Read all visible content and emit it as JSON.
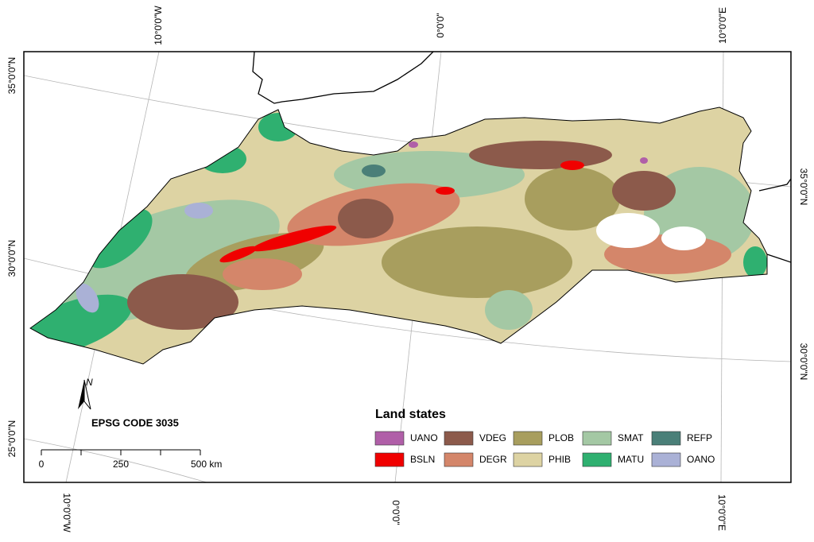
{
  "graticule": {
    "top": [
      "10°0'0\"W",
      "0°0'0\"",
      "10°0'0\"E"
    ],
    "bottom": [
      "10°0'0\"W",
      "0°0'0\"",
      "10°0'0\"E"
    ],
    "left": [
      "35°0'0\"N",
      "30°0'0\"N",
      "25°0'0\"N"
    ],
    "right": [
      "35°0'0\"N",
      "30°0'0\"N"
    ]
  },
  "north_arrow": "N",
  "projection": "EPSG CODE 3035",
  "scale_bar": [
    "0",
    "250",
    "500 km"
  ],
  "legend": {
    "title": "Land states",
    "items": [
      {
        "name": "UANO",
        "color": "#b05fa8"
      },
      {
        "name": "BSLN",
        "color": "#f00000"
      },
      {
        "name": "VDEG",
        "color": "#8c5a4b"
      },
      {
        "name": "DEGR",
        "color": "#d4866a"
      },
      {
        "name": "PLOB",
        "color": "#a89e5e"
      },
      {
        "name": "PHIB",
        "color": "#ddd3a3"
      },
      {
        "name": "SMAT",
        "color": "#a4c8a4"
      },
      {
        "name": "MATU",
        "color": "#2fb070"
      },
      {
        "name": "REFP",
        "color": "#4a7f78"
      },
      {
        "name": "OANO",
        "color": "#aab1d6"
      }
    ]
  }
}
